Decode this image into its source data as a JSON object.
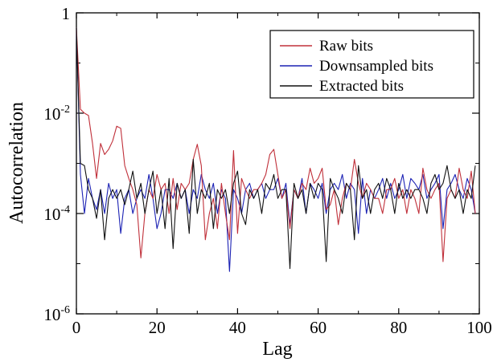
{
  "chart_data": {
    "type": "line",
    "xlabel": "Lag",
    "ylabel": "Autocorrelation",
    "xlim": [
      0,
      100
    ],
    "ylim": [
      1e-06,
      1
    ],
    "yscale": "log",
    "grid": false,
    "legend_position": "top-right",
    "x_ticks": [
      {
        "value": 0,
        "label": "0"
      },
      {
        "value": 20,
        "label": "20"
      },
      {
        "value": 40,
        "label": "40"
      },
      {
        "value": 60,
        "label": "60"
      },
      {
        "value": 80,
        "label": "80"
      },
      {
        "value": 100,
        "label": "100"
      }
    ],
    "y_ticks": [
      {
        "value": 1,
        "base": "1",
        "exp": ""
      },
      {
        "value": 0.01,
        "base": "10",
        "exp": "-2"
      },
      {
        "value": 0.0001,
        "base": "10",
        "exp": "-4"
      },
      {
        "value": 1e-06,
        "base": "10",
        "exp": "-6"
      }
    ],
    "series": [
      {
        "name": "Raw bits",
        "color": "#c0303a",
        "x": [
          0,
          1,
          2,
          3,
          4,
          5,
          6,
          7,
          8,
          9,
          10,
          11,
          12,
          13,
          14,
          15,
          16,
          17,
          18,
          19,
          20,
          21,
          22,
          23,
          24,
          25,
          26,
          27,
          28,
          29,
          30,
          31,
          32,
          33,
          34,
          35,
          36,
          37,
          38,
          39,
          40,
          41,
          42,
          43,
          44,
          45,
          46,
          47,
          48,
          49,
          50,
          51,
          52,
          53,
          54,
          55,
          56,
          57,
          58,
          59,
          60,
          61,
          62,
          63,
          64,
          65,
          66,
          67,
          68,
          69,
          70,
          71,
          72,
          73,
          74,
          75,
          76,
          77,
          78,
          79,
          80,
          81,
          82,
          83,
          84,
          85,
          86,
          87,
          88,
          89,
          90,
          91,
          92,
          93,
          94,
          95,
          96,
          97,
          98,
          99
        ],
        "y": [
          0.5,
          0.012,
          0.01,
          0.009,
          0.0025,
          0.0005,
          0.0025,
          0.0015,
          0.0019,
          0.0028,
          0.0055,
          0.005,
          0.0009,
          0.0005,
          0.0003,
          0.00015,
          1.3e-05,
          0.0001,
          0.0003,
          0.0002,
          0.0006,
          0.0003,
          0.0004,
          0.0001,
          0.0005,
          0.00012,
          0.0004,
          0.0003,
          0.0004,
          0.0012,
          0.0024,
          0.0009,
          3e-05,
          0.0001,
          0.0002,
          5e-05,
          0.0004,
          0.0001,
          3e-05,
          0.0018,
          4e-05,
          0.0005,
          0.0003,
          0.0002,
          0.0003,
          0.0003,
          0.0004,
          0.0006,
          0.0015,
          0.0019,
          0.0006,
          0.0002,
          0.0003,
          5e-05,
          0.0003,
          0.0002,
          0.0004,
          0.0003,
          0.0008,
          0.0004,
          0.0005,
          0.0008,
          0.00012,
          0.00015,
          0.0003,
          6e-05,
          0.0002,
          0.0004,
          0.0003,
          0.0012,
          0.0004,
          0.0002,
          0.0004,
          0.0003,
          0.0002,
          0.0002,
          0.0001,
          0.0003,
          0.0003,
          0.0005,
          0.0002,
          0.0003,
          0.0001,
          0.0003,
          0.0002,
          0.0001,
          0.0008,
          0.0003,
          0.0002,
          0.0003,
          0.0004,
          1.1e-05,
          0.0002,
          0.0003,
          0.0002,
          0.0008,
          0.0003,
          0.0002,
          0.0007,
          0.0001
        ]
      },
      {
        "name": "Downsampled bits",
        "color": "#1c22b4",
        "x": [
          0,
          1,
          2,
          3,
          4,
          5,
          6,
          7,
          8,
          9,
          10,
          11,
          12,
          13,
          14,
          15,
          16,
          17,
          18,
          19,
          20,
          21,
          22,
          23,
          24,
          25,
          26,
          27,
          28,
          29,
          30,
          31,
          32,
          33,
          34,
          35,
          36,
          37,
          38,
          39,
          40,
          41,
          42,
          43,
          44,
          45,
          46,
          47,
          48,
          49,
          50,
          51,
          52,
          53,
          54,
          55,
          56,
          57,
          58,
          59,
          60,
          61,
          62,
          63,
          64,
          65,
          66,
          67,
          68,
          69,
          70,
          71,
          72,
          73,
          74,
          75,
          76,
          77,
          78,
          79,
          80,
          81,
          82,
          83,
          84,
          85,
          86,
          87,
          88,
          89,
          90,
          91,
          92,
          93,
          94,
          95,
          96,
          97,
          98,
          99
        ],
        "y": [
          0.5,
          0.0006,
          0.0001,
          0.0005,
          0.0002,
          0.00012,
          0.0003,
          0.0001,
          0.0004,
          0.0002,
          0.0003,
          4e-05,
          0.0002,
          0.0003,
          0.0001,
          0.0002,
          0.0003,
          0.0002,
          0.0006,
          0.0002,
          5e-05,
          0.0001,
          0.0003,
          0.0003,
          0.0002,
          0.0004,
          0.0002,
          0.0003,
          0.0001,
          0.0003,
          0.0002,
          0.0006,
          0.0003,
          0.0002,
          0.0004,
          0.0001,
          0.0003,
          0.0002,
          7e-06,
          0.0003,
          0.0002,
          0.0001,
          0.0003,
          0.0004,
          0.0002,
          0.0003,
          0.0004,
          0.0002,
          0.0003,
          0.0003,
          0.0005,
          0.0002,
          0.0004,
          6e-05,
          0.0003,
          0.0002,
          0.0005,
          0.0001,
          0.0004,
          0.0003,
          0.0002,
          0.0004,
          0.0001,
          0.0003,
          0.0004,
          0.0003,
          0.0006,
          0.0002,
          0.0004,
          0.0003,
          4e-05,
          0.0005,
          0.0001,
          0.0003,
          0.0002,
          0.0003,
          0.0005,
          0.0002,
          0.0004,
          0.0002,
          0.0003,
          0.0006,
          0.0002,
          0.0005,
          0.0004,
          0.0003,
          0.0006,
          0.0002,
          0.0003,
          0.0004,
          0.0006,
          5e-05,
          0.0003,
          0.0004,
          0.0006,
          0.0003,
          0.0002,
          0.0005,
          0.0003,
          0.0001
        ]
      },
      {
        "name": "Extracted bits",
        "color": "#111111",
        "x": [
          0,
          1,
          2,
          3,
          4,
          5,
          6,
          7,
          8,
          9,
          10,
          11,
          12,
          13,
          14,
          15,
          16,
          17,
          18,
          19,
          20,
          21,
          22,
          23,
          24,
          25,
          26,
          27,
          28,
          29,
          30,
          31,
          32,
          33,
          34,
          35,
          36,
          37,
          38,
          39,
          40,
          41,
          42,
          43,
          44,
          45,
          46,
          47,
          48,
          49,
          50,
          51,
          52,
          53,
          54,
          55,
          56,
          57,
          58,
          59,
          60,
          61,
          62,
          63,
          64,
          65,
          66,
          67,
          68,
          69,
          70,
          71,
          72,
          73,
          74,
          75,
          76,
          77,
          78,
          79,
          80,
          81,
          82,
          83,
          84,
          85,
          86,
          87,
          88,
          89,
          90,
          91,
          92,
          93,
          94,
          95,
          96,
          97,
          98,
          99
        ],
        "y": [
          0.5,
          0.001,
          0.0009,
          0.0003,
          0.0002,
          8e-05,
          0.0003,
          3e-05,
          0.0002,
          0.0003,
          0.0002,
          0.0003,
          0.00015,
          0.0003,
          0.0007,
          0.0002,
          0.0004,
          0.0001,
          0.0003,
          0.0007,
          0.0001,
          0.0003,
          5e-05,
          0.0005,
          2e-05,
          0.0004,
          0.0002,
          0.0003,
          4e-05,
          0.0012,
          0.0001,
          0.0003,
          0.0002,
          0.0004,
          5e-05,
          0.0003,
          0.0002,
          0.0003,
          0.0001,
          0.0004,
          0.0007,
          0.0001,
          6e-05,
          0.0003,
          0.0002,
          0.0003,
          0.0001,
          0.0004,
          0.0003,
          0.0006,
          0.0002,
          0.0003,
          0.0003,
          8e-06,
          0.0004,
          0.0002,
          0.0003,
          0.0001,
          0.0004,
          0.0002,
          0.0004,
          0.0003,
          1.1e-05,
          0.0005,
          0.0003,
          0.0002,
          0.0001,
          0.0004,
          0.0003,
          3e-05,
          0.0009,
          0.0002,
          0.0003,
          0.0001,
          0.0003,
          0.0004,
          0.0002,
          0.0005,
          0.0003,
          0.0001,
          0.0004,
          0.0002,
          0.0003,
          0.0002,
          0.0003,
          0.0003,
          0.0002,
          0.0001,
          0.0004,
          0.0006,
          0.0003,
          0.0004,
          0.0009,
          0.0003,
          0.0002,
          0.0003,
          0.0001,
          0.0003,
          0.0002,
          0.0009
        ]
      }
    ]
  }
}
